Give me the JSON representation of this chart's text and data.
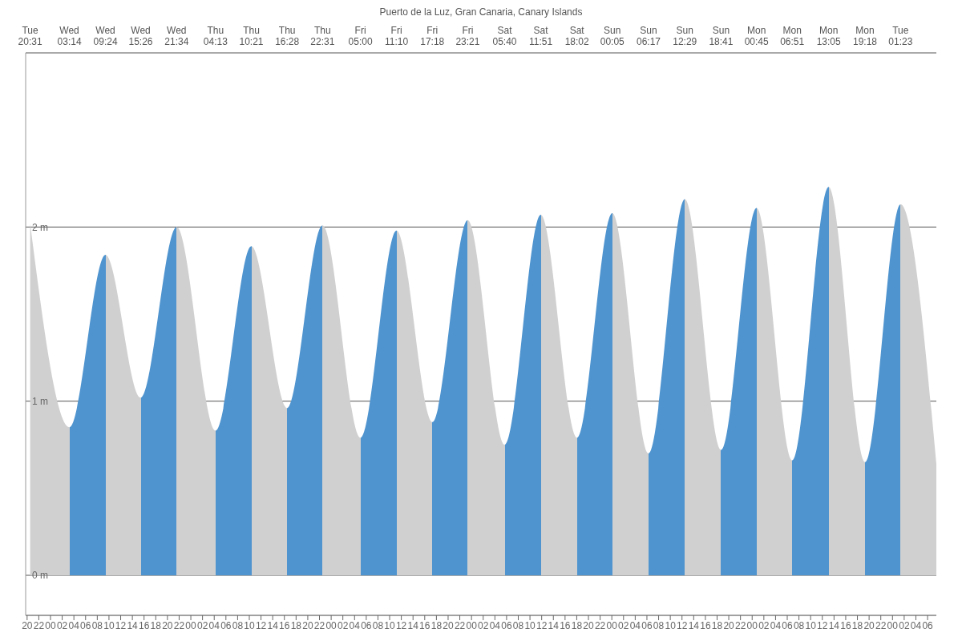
{
  "chart_data": {
    "type": "area",
    "title": "Puerto de la Luz, Gran Canaria, Canary Islands",
    "annotations": [
      "Tue\n20:31",
      "Wed\n03:14",
      "Wed\n09:24",
      "Wed\n15:26",
      "Wed\n21:34",
      "Thu\n04:13",
      "Thu\n10:21",
      "Thu\n16:28",
      "Thu\n22:31",
      "Fri\n05:00",
      "Fri\n11:10",
      "Fri\n17:18",
      "Fri\n23:21",
      "Sat\n05:40",
      "Sat\n11:51",
      "Sat\n18:02",
      "Sun\n00:05",
      "Sun\n06:17",
      "Sun\n12:29",
      "Sun\n18:41",
      "Mon\n00:45",
      "Mon\n06:51",
      "Mon\n13:05",
      "Mon\n19:18",
      "Tue\n01:23"
    ],
    "x": [
      20.52,
      27.23,
      33.4,
      39.43,
      45.57,
      52.22,
      58.35,
      64.47,
      70.52,
      77.0,
      83.17,
      89.3,
      95.35,
      101.67,
      107.85,
      114.03,
      120.08,
      126.28,
      132.48,
      138.68,
      144.75,
      150.85,
      157.08,
      163.3,
      169.38,
      175.5
    ],
    "series": [
      {
        "values": [
          2.02,
          0.85,
          1.84,
          1.02,
          2.0,
          0.83,
          1.89,
          0.96,
          2.01,
          0.79,
          1.98,
          0.88,
          2.04,
          0.75,
          2.07,
          0.79,
          2.08,
          0.7,
          2.16,
          0.72,
          2.11,
          0.66,
          2.23,
          0.65,
          2.13,
          0.64
        ],
        "colors": [
          "#d0d0d0",
          "#4f94cf",
          "#d0d0d0",
          "#4f94cf",
          "#d0d0d0",
          "#4f94cf",
          "#d0d0d0",
          "#4f94cf",
          "#d0d0d0",
          "#4f94cf",
          "#d0d0d0",
          "#4f94cf",
          "#d0d0d0",
          "#4f94cf",
          "#d0d0d0",
          "#4f94cf",
          "#d0d0d0",
          "#4f94cf",
          "#d0d0d0",
          "#4f94cf",
          "#d0d0d0",
          "#4f94cf",
          "#d0d0d0",
          "#4f94cf",
          "#d0d0d0",
          "#d0d0d0"
        ]
      }
    ],
    "xlim": [
      19.75,
      175.5
    ],
    "xticks": [
      {
        "value": 20,
        "label": "20"
      },
      {
        "value": 22,
        "label": "22"
      },
      {
        "value": 24,
        "label": "00"
      },
      {
        "value": 26,
        "label": "02"
      },
      {
        "value": 28,
        "label": "04"
      },
      {
        "value": 30,
        "label": "06"
      },
      {
        "value": 32,
        "label": "08"
      },
      {
        "value": 34,
        "label": "10"
      },
      {
        "value": 36,
        "label": "12"
      },
      {
        "value": 38,
        "label": "14"
      },
      {
        "value": 40,
        "label": "16"
      },
      {
        "value": 42,
        "label": "18"
      },
      {
        "value": 44,
        "label": "20"
      },
      {
        "value": 46,
        "label": "22"
      },
      {
        "value": 48,
        "label": "00"
      },
      {
        "value": 50,
        "label": "02"
      },
      {
        "value": 52,
        "label": "04"
      },
      {
        "value": 54,
        "label": "06"
      },
      {
        "value": 56,
        "label": "08"
      },
      {
        "value": 58,
        "label": "10"
      },
      {
        "value": 60,
        "label": "12"
      },
      {
        "value": 62,
        "label": "14"
      },
      {
        "value": 64,
        "label": "16"
      },
      {
        "value": 66,
        "label": "18"
      },
      {
        "value": 68,
        "label": "20"
      },
      {
        "value": 70,
        "label": "22"
      },
      {
        "value": 72,
        "label": "00"
      },
      {
        "value": 74,
        "label": "02"
      },
      {
        "value": 76,
        "label": "04"
      },
      {
        "value": 78,
        "label": "06"
      },
      {
        "value": 80,
        "label": "08"
      },
      {
        "value": 82,
        "label": "10"
      },
      {
        "value": 84,
        "label": "12"
      },
      {
        "value": 86,
        "label": "14"
      },
      {
        "value": 88,
        "label": "16"
      },
      {
        "value": 90,
        "label": "18"
      },
      {
        "value": 92,
        "label": "20"
      },
      {
        "value": 94,
        "label": "22"
      },
      {
        "value": 96,
        "label": "00"
      },
      {
        "value": 98,
        "label": "02"
      },
      {
        "value": 100,
        "label": "04"
      },
      {
        "value": 102,
        "label": "06"
      },
      {
        "value": 104,
        "label": "08"
      },
      {
        "value": 106,
        "label": "10"
      },
      {
        "value": 108,
        "label": "12"
      },
      {
        "value": 110,
        "label": "14"
      },
      {
        "value": 112,
        "label": "16"
      },
      {
        "value": 114,
        "label": "18"
      },
      {
        "value": 116,
        "label": "20"
      },
      {
        "value": 118,
        "label": "22"
      },
      {
        "value": 120,
        "label": "00"
      },
      {
        "value": 122,
        "label": "02"
      },
      {
        "value": 124,
        "label": "04"
      },
      {
        "value": 126,
        "label": "06"
      },
      {
        "value": 128,
        "label": "08"
      },
      {
        "value": 130,
        "label": "10"
      },
      {
        "value": 132,
        "label": "12"
      },
      {
        "value": 134,
        "label": "14"
      },
      {
        "value": 136,
        "label": "16"
      },
      {
        "value": 138,
        "label": "18"
      },
      {
        "value": 140,
        "label": "20"
      },
      {
        "value": 142,
        "label": "22"
      },
      {
        "value": 144,
        "label": "00"
      },
      {
        "value": 146,
        "label": "02"
      },
      {
        "value": 148,
        "label": "04"
      },
      {
        "value": 150,
        "label": "06"
      },
      {
        "value": 152,
        "label": "08"
      },
      {
        "value": 154,
        "label": "10"
      },
      {
        "value": 156,
        "label": "12"
      },
      {
        "value": 158,
        "label": "14"
      },
      {
        "value": 160,
        "label": "16"
      },
      {
        "value": 162,
        "label": "18"
      },
      {
        "value": 164,
        "label": "20"
      },
      {
        "value": 166,
        "label": "22"
      },
      {
        "value": 168,
        "label": "00"
      },
      {
        "value": 170,
        "label": "02"
      },
      {
        "value": 172,
        "label": "04"
      },
      {
        "value": 174,
        "label": "06"
      }
    ],
    "ylim": [
      -0.23,
      3.0
    ],
    "yticks": [
      {
        "value": 0,
        "label": "0 m"
      },
      {
        "value": 1,
        "label": "1 m"
      },
      {
        "value": 2,
        "label": "2 m"
      }
    ],
    "grid": "y"
  }
}
